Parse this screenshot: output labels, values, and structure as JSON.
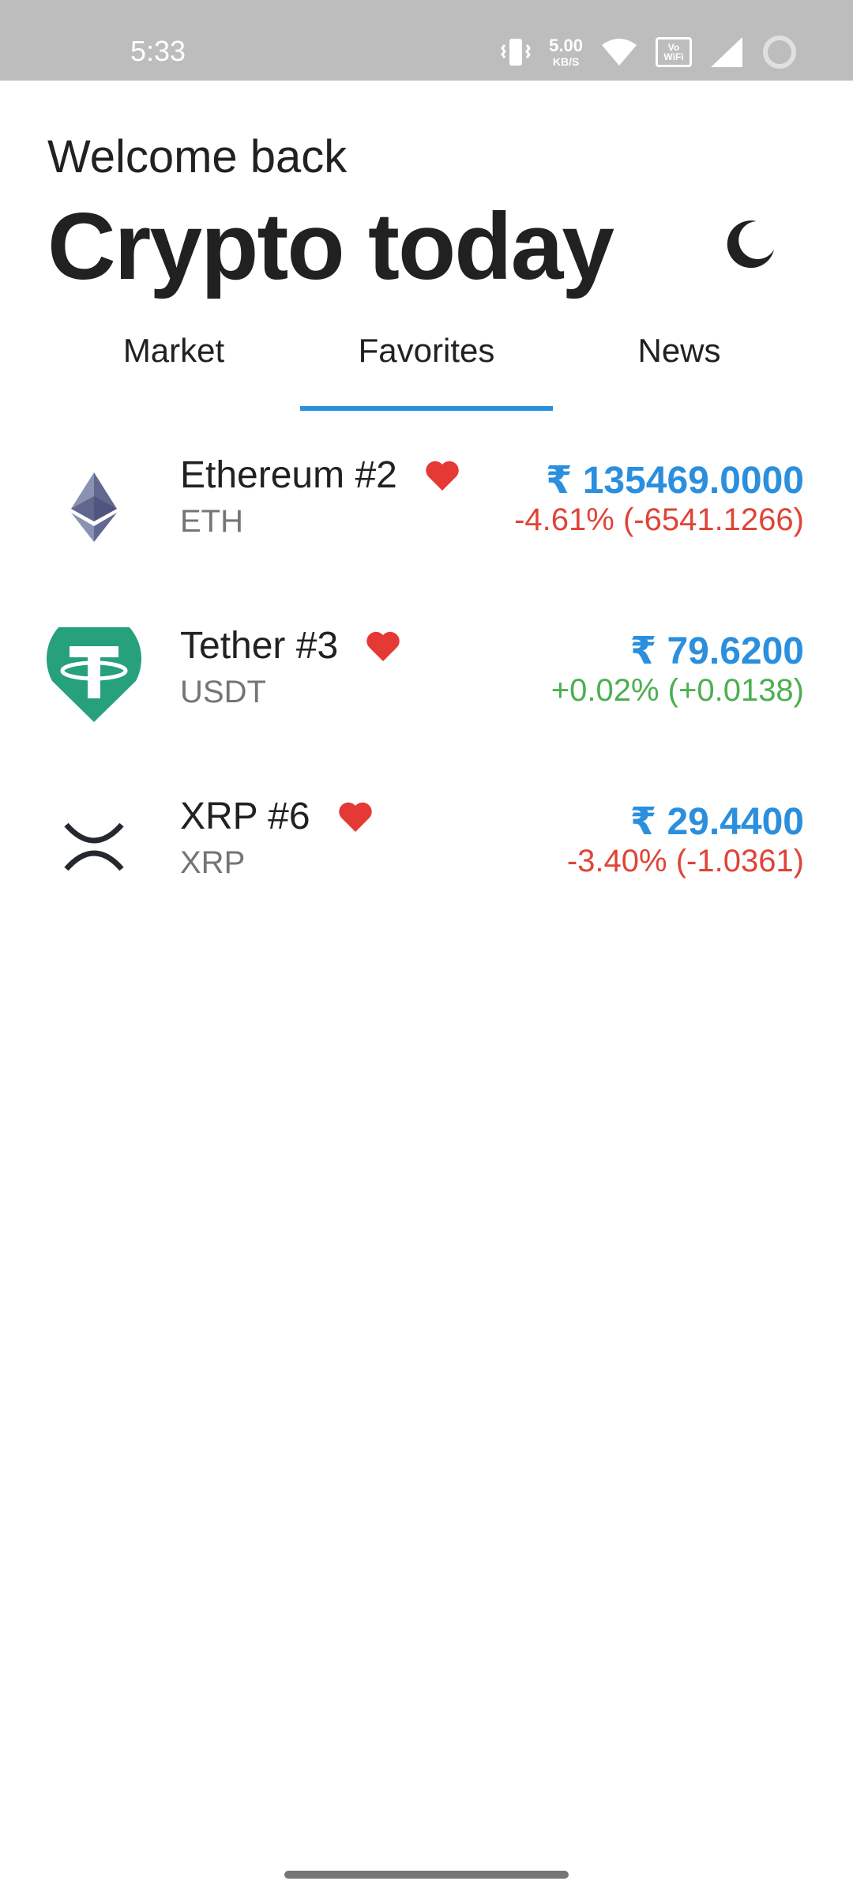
{
  "status_bar": {
    "time": "5:33",
    "net_speed_value": "5.00",
    "net_speed_unit": "KB/S",
    "volte_label": "Vo WiFi",
    "icons": [
      "vibrate-icon",
      "wifi-icon",
      "vowifi-icon",
      "signal-icon",
      "loading-icon"
    ]
  },
  "header": {
    "welcome": "Welcome back",
    "title": "Crypto today",
    "theme_icon": "moon-icon"
  },
  "tabs": [
    {
      "label": "Market",
      "active": false
    },
    {
      "label": "Favorites",
      "active": true
    },
    {
      "label": "News",
      "active": false
    }
  ],
  "colors": {
    "accent": "#2b8fdd",
    "negative": "#e04436",
    "positive": "#4caf50",
    "favorite": "#e53935",
    "tether": "#26a17b",
    "ethereum": "#627eea",
    "xrp": "#23292f"
  },
  "coins": [
    {
      "name": "Ethereum #2",
      "symbol": "ETH",
      "price": "₹ 135469.0000",
      "change": "-4.61% (-6541.1266)",
      "trend": "negative",
      "icon": "ethereum-icon",
      "favorite": true
    },
    {
      "name": "Tether #3",
      "symbol": "USDT",
      "price": "₹ 79.6200",
      "change": "+0.02% (+0.0138)",
      "trend": "positive",
      "icon": "tether-icon",
      "favorite": true
    },
    {
      "name": "XRP #6",
      "symbol": "XRP",
      "price": "₹ 29.4400",
      "change": "-3.40% (-1.0361)",
      "trend": "negative",
      "icon": "xrp-icon",
      "favorite": true
    }
  ]
}
